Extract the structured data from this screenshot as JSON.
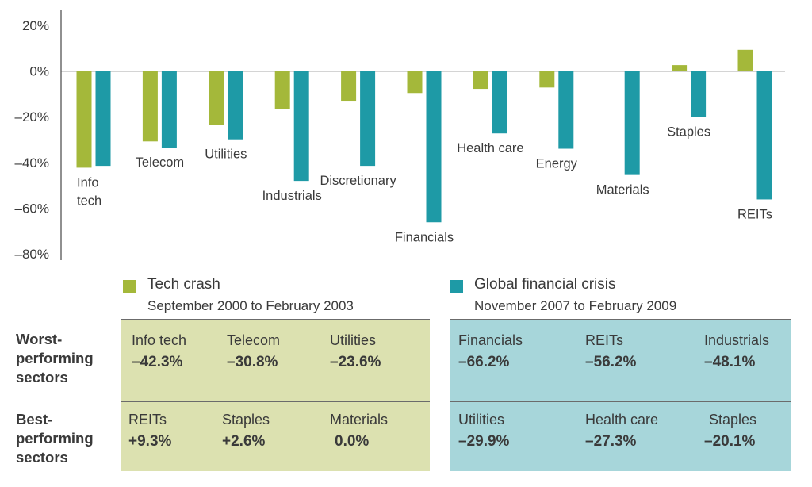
{
  "chart_data": {
    "type": "bar",
    "categories": [
      "Info tech",
      "Telecom",
      "Utilities",
      "Industrials",
      "Discretionary",
      "Financials",
      "Health care",
      "Energy",
      "Materials",
      "Staples",
      "REITs"
    ],
    "category_labels": [
      [
        "Info",
        "tech"
      ],
      [
        "Telecom"
      ],
      [
        "Utilities"
      ],
      [
        "Industrials"
      ],
      [
        "Discretionary"
      ],
      [
        "Financials"
      ],
      [
        "Health care"
      ],
      [
        "Energy"
      ],
      [
        "Materials"
      ],
      [
        "Staples"
      ],
      [
        "REITs"
      ]
    ],
    "series": [
      {
        "name": "Tech crash",
        "color": "#a4b83a",
        "values": [
          -42.3,
          -30.8,
          -23.6,
          -16.5,
          -13.0,
          -9.6,
          -7.8,
          -7.2,
          0.0,
          2.6,
          9.3
        ]
      },
      {
        "name": "Global financial crisis",
        "color": "#1e9aa6",
        "values": [
          -41.5,
          -33.5,
          -29.9,
          -48.1,
          -41.5,
          -66.2,
          -27.3,
          -34.0,
          -45.5,
          -20.1,
          -56.2
        ]
      }
    ],
    "ylim": [
      -80,
      20
    ],
    "yticks": [
      20,
      0,
      -20,
      -40,
      -60,
      -80
    ],
    "ytick_labels": [
      "20%",
      "0%",
      "–20%",
      "–40%",
      "–60%",
      "–80%"
    ]
  },
  "legend": {
    "tech": {
      "title": "Tech crash",
      "subtitle": "September 2000 to February 2003",
      "color": "#a4b83a"
    },
    "gfc": {
      "title": "Global financial crisis",
      "subtitle": "November 2007 to February 2009",
      "color": "#1e9aa6"
    }
  },
  "rows": {
    "worst_label": [
      "Worst-",
      "performing",
      "sectors"
    ],
    "best_label": [
      "Best-",
      "performing",
      "sectors"
    ]
  },
  "table": {
    "tech": {
      "bg": "#dce1b0",
      "worst": [
        {
          "name": "Info tech",
          "value": "–42.3%"
        },
        {
          "name": "Telecom",
          "value": "–30.8%"
        },
        {
          "name": "Utilities",
          "value": "–23.6%"
        }
      ],
      "best": [
        {
          "name": "REITs",
          "value": "+9.3%"
        },
        {
          "name": "Staples",
          "value": "+2.6%"
        },
        {
          "name": "Materials",
          "value": "0.0%"
        }
      ]
    },
    "gfc": {
      "bg": "#a7d6da",
      "worst": [
        {
          "name": "Financials",
          "value": "–66.2%"
        },
        {
          "name": "REITs",
          "value": "–56.2%"
        },
        {
          "name": "Industrials",
          "value": "–48.1%"
        }
      ],
      "best": [
        {
          "name": "Utilities",
          "value": "–29.9%"
        },
        {
          "name": "Health care",
          "value": "–27.3%"
        },
        {
          "name": "Staples",
          "value": "–20.1%"
        }
      ]
    }
  }
}
